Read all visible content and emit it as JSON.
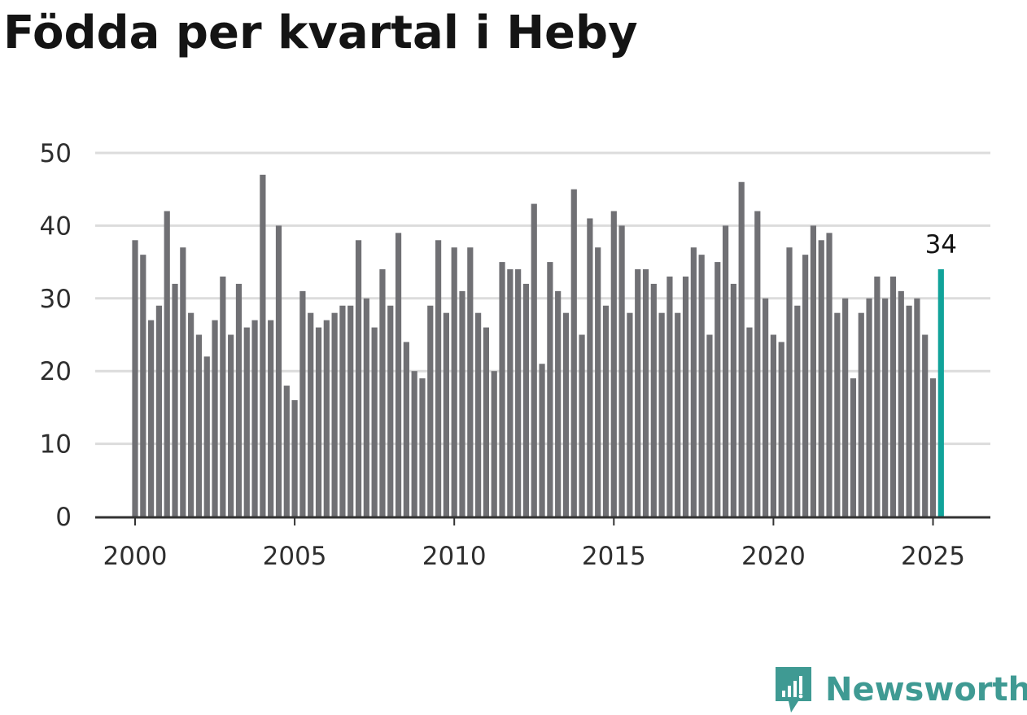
{
  "title": "Födda per kvartal i Heby",
  "brand": {
    "name": "Newsworthy",
    "icon": "newsworthy-logo-icon",
    "color": "#3f9a93"
  },
  "colors": {
    "bar": "#707074",
    "highlight": "#11a39a",
    "grid": "#dcdcdc",
    "axis": "#333333"
  },
  "chart_data": {
    "type": "bar",
    "title": "Födda per kvartal i Heby",
    "xlabel": "",
    "ylabel": "",
    "ylim": [
      0,
      50
    ],
    "yticks": [
      0,
      10,
      20,
      30,
      40,
      50
    ],
    "xticks": [
      2000,
      2005,
      2010,
      2015,
      2020,
      2025
    ],
    "x_start_year": 2000,
    "periods_per_year": 4,
    "grid": true,
    "legend": "none",
    "highlight_last": true,
    "last_value_label": "34",
    "values": [
      38,
      36,
      27,
      29,
      42,
      32,
      37,
      28,
      25,
      22,
      27,
      33,
      25,
      32,
      26,
      27,
      47,
      27,
      40,
      18,
      16,
      31,
      28,
      26,
      27,
      28,
      29,
      29,
      38,
      30,
      26,
      34,
      29,
      39,
      24,
      20,
      19,
      29,
      38,
      28,
      37,
      31,
      37,
      28,
      26,
      20,
      35,
      34,
      34,
      32,
      43,
      21,
      35,
      31,
      28,
      45,
      25,
      41,
      37,
      29,
      42,
      40,
      28,
      34,
      34,
      32,
      28,
      33,
      28,
      33,
      37,
      36,
      25,
      35,
      40,
      32,
      46,
      26,
      42,
      30,
      25,
      24,
      37,
      29,
      36,
      40,
      38,
      39,
      28,
      30,
      19,
      28,
      30,
      33,
      30,
      33,
      31,
      29,
      30,
      25,
      19,
      34
    ]
  }
}
